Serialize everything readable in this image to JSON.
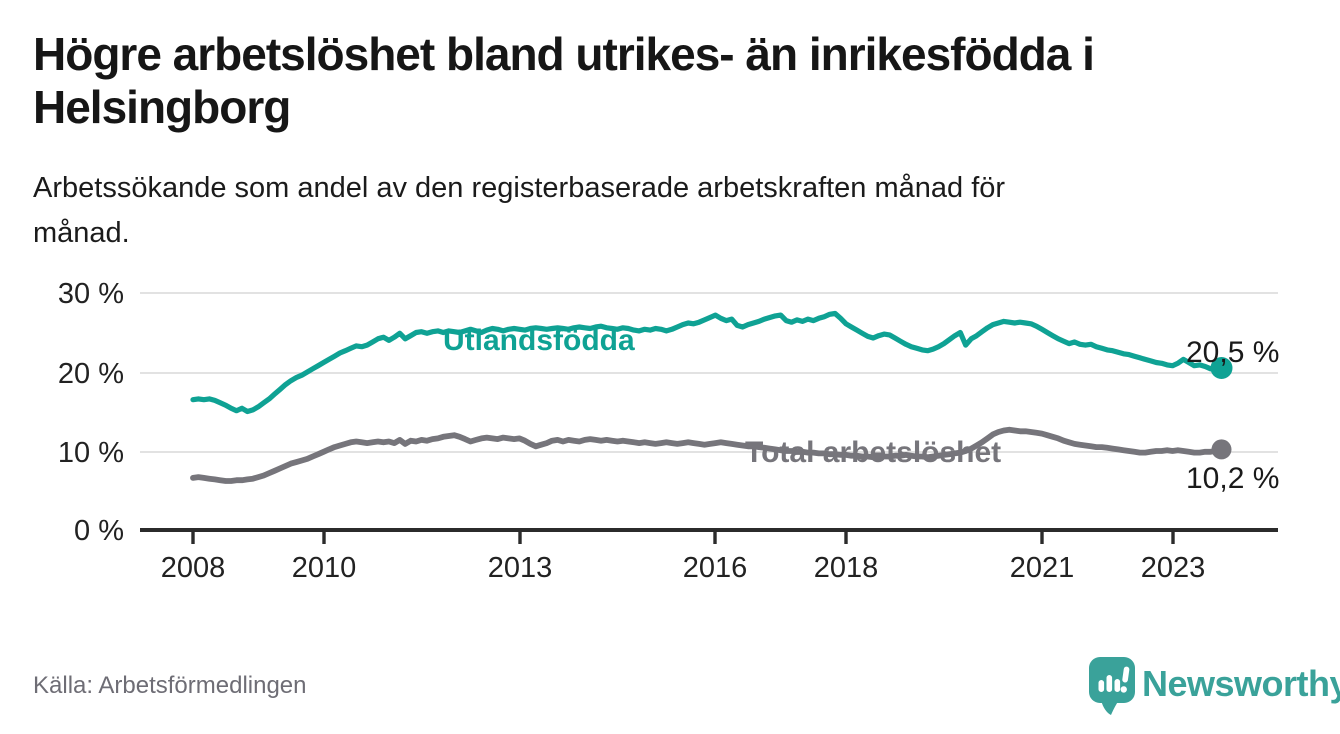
{
  "header": {
    "title": "Högre arbetslöshet bland utrikes- än inrikesfödda i Helsingborg",
    "title_lines": [
      "Högre arbetslöshet bland utrikes- än inrikesfödda i",
      "Helsingborg"
    ],
    "subtitle": "Arbetssökande som andel av den registerbaserade arbetskraften månad för månad.",
    "subtitle_lines": [
      "Arbetssökande som andel av den registerbaserade arbetskraften månad för",
      "månad."
    ]
  },
  "footer": {
    "source": "Källa: Arbetsförmedlingen"
  },
  "branding": {
    "logo_text": "Newsworthy",
    "logo_icon": "newsworthy-speech-bubble-bar-chart-icon",
    "brand_color": "#3aa29a"
  },
  "chart_data": {
    "type": "line",
    "title": "Högre arbetslöshet bland utrikes- än inrikesfödda i Helsingborg",
    "subtitle": "Arbetssökande som andel av den registerbaserade arbetskraften månad för månad.",
    "x_unit": "month",
    "x_start": "2008-01",
    "x_end": "2023-10",
    "ylim": [
      0,
      30
    ],
    "grid": "horizontal",
    "legend_position": "inline-labels",
    "yticks": [
      {
        "value": 30,
        "label": "30 %"
      },
      {
        "value": 20,
        "label": "20 %"
      },
      {
        "value": 10,
        "label": "10 %"
      },
      {
        "value": 0,
        "label": "0 %"
      }
    ],
    "xticks": [
      {
        "value": 2008,
        "label": "2008"
      },
      {
        "value": 2010,
        "label": "2010"
      },
      {
        "value": 2013,
        "label": "2013"
      },
      {
        "value": 2016,
        "label": "2016"
      },
      {
        "value": 2018,
        "label": "2018"
      },
      {
        "value": 2021,
        "label": "2021"
      },
      {
        "value": 2023,
        "label": "2023"
      }
    ],
    "series": [
      {
        "name": "Utlandsfödda",
        "color": "#0fa294",
        "end_value": 20.5,
        "end_label": "20,5 %",
        "values": [
          16.5,
          16.6,
          16.5,
          16.6,
          16.4,
          16.1,
          15.8,
          15.4,
          15.1,
          15.4,
          15.0,
          15.2,
          15.6,
          16.1,
          16.6,
          17.2,
          17.8,
          18.4,
          18.9,
          19.3,
          19.6,
          20.0,
          20.4,
          20.8,
          21.2,
          21.6,
          22.0,
          22.4,
          22.7,
          23.0,
          23.3,
          23.2,
          23.4,
          23.8,
          24.2,
          24.4,
          24.0,
          24.4,
          24.9,
          24.2,
          24.6,
          25.0,
          25.1,
          24.9,
          25.1,
          25.2,
          25.0,
          25.2,
          25.1,
          25.0,
          25.2,
          25.4,
          25.2,
          25.0,
          25.3,
          25.5,
          25.4,
          25.2,
          25.4,
          25.5,
          25.4,
          25.3,
          25.5,
          25.6,
          25.5,
          25.4,
          25.5,
          25.6,
          25.5,
          25.4,
          25.6,
          25.7,
          25.6,
          25.5,
          25.7,
          25.8,
          25.6,
          25.5,
          25.4,
          25.6,
          25.5,
          25.3,
          25.2,
          25.4,
          25.3,
          25.5,
          25.4,
          25.2,
          25.4,
          25.7,
          26.0,
          26.2,
          26.1,
          26.3,
          26.6,
          26.9,
          27.2,
          26.8,
          26.5,
          26.7,
          25.9,
          25.7,
          26.0,
          26.2,
          26.4,
          26.7,
          26.9,
          27.1,
          27.2,
          26.5,
          26.3,
          26.6,
          26.4,
          26.7,
          26.5,
          26.8,
          27.0,
          27.3,
          27.4,
          26.8,
          26.1,
          25.7,
          25.3,
          24.9,
          24.5,
          24.3,
          24.6,
          24.8,
          24.7,
          24.3,
          23.9,
          23.5,
          23.2,
          23.0,
          22.8,
          22.7,
          22.9,
          23.2,
          23.6,
          24.1,
          24.6,
          25.0,
          23.4,
          24.2,
          24.6,
          25.1,
          25.6,
          26.0,
          26.2,
          26.4,
          26.3,
          26.2,
          26.3,
          26.2,
          26.1,
          25.8,
          25.4,
          25.0,
          24.6,
          24.2,
          23.9,
          23.6,
          23.8,
          23.5,
          23.4,
          23.5,
          23.2,
          23.0,
          22.8,
          22.7,
          22.5,
          22.3,
          22.2,
          22.0,
          21.8,
          21.6,
          21.4,
          21.2,
          21.1,
          20.9,
          20.8,
          21.1,
          21.6,
          21.2,
          20.8,
          20.9,
          20.7,
          20.4,
          20.3,
          20.5
        ]
      },
      {
        "name": "Total arbetslöshet",
        "color": "#76757b",
        "end_value": 10.2,
        "end_label": "10,2 %",
        "values": [
          6.6,
          6.7,
          6.6,
          6.5,
          6.4,
          6.3,
          6.2,
          6.2,
          6.3,
          6.3,
          6.4,
          6.5,
          6.7,
          6.9,
          7.2,
          7.5,
          7.8,
          8.1,
          8.4,
          8.6,
          8.8,
          9.0,
          9.3,
          9.6,
          9.9,
          10.2,
          10.5,
          10.7,
          10.9,
          11.1,
          11.2,
          11.1,
          11.0,
          11.1,
          11.2,
          11.1,
          11.2,
          11.0,
          11.4,
          10.9,
          11.3,
          11.2,
          11.4,
          11.3,
          11.5,
          11.6,
          11.8,
          11.9,
          12.0,
          11.8,
          11.5,
          11.2,
          11.4,
          11.6,
          11.7,
          11.6,
          11.5,
          11.7,
          11.6,
          11.5,
          11.6,
          11.3,
          10.9,
          10.6,
          10.8,
          11.0,
          11.3,
          11.4,
          11.2,
          11.4,
          11.3,
          11.2,
          11.4,
          11.5,
          11.4,
          11.3,
          11.4,
          11.3,
          11.2,
          11.3,
          11.2,
          11.1,
          11.0,
          11.1,
          11.0,
          10.9,
          11.0,
          11.1,
          11.0,
          10.9,
          11.0,
          11.1,
          11.0,
          10.9,
          10.8,
          10.9,
          11.0,
          11.1,
          11.0,
          10.9,
          10.8,
          10.7,
          10.6,
          10.6,
          10.5,
          10.4,
          10.3,
          10.2,
          10.1,
          10.0,
          10.0,
          9.9,
          9.9,
          9.8,
          9.8,
          9.7,
          9.7,
          9.6,
          9.6,
          9.5,
          9.5,
          9.4,
          9.4,
          9.3,
          9.3,
          9.2,
          9.2,
          9.3,
          9.3,
          9.4,
          9.4,
          9.5,
          9.4,
          9.3,
          9.3,
          9.2,
          9.3,
          9.4,
          9.5,
          9.6,
          9.7,
          9.8,
          10.0,
          10.3,
          10.7,
          11.1,
          11.6,
          12.1,
          12.4,
          12.6,
          12.7,
          12.6,
          12.5,
          12.5,
          12.4,
          12.3,
          12.2,
          12.0,
          11.8,
          11.6,
          11.3,
          11.1,
          10.9,
          10.8,
          10.7,
          10.6,
          10.5,
          10.5,
          10.4,
          10.3,
          10.2,
          10.1,
          10.0,
          9.9,
          9.8,
          9.8,
          9.9,
          10.0,
          10.0,
          10.1,
          10.0,
          10.1,
          10.0,
          9.9,
          9.8,
          9.8,
          9.9,
          9.9,
          10.0,
          10.2
        ]
      }
    ]
  }
}
